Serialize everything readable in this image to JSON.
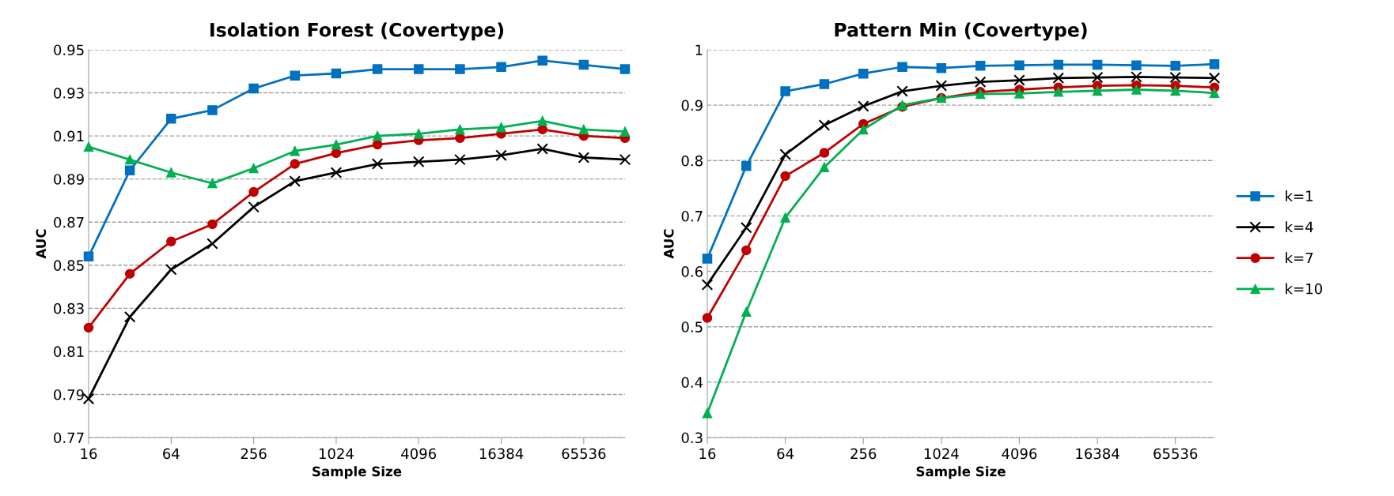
{
  "chart_data": [
    {
      "type": "line",
      "title": "Isolation Forest (Covertype)",
      "xlabel": "Sample Size",
      "ylabel": "AUC",
      "categories": [
        "16",
        null,
        "64",
        null,
        "256",
        null,
        "1024",
        null,
        "4096",
        null,
        "16384",
        null,
        "65536",
        null
      ],
      "ylim": [
        0.77,
        0.95
      ],
      "yticks": [
        0.77,
        0.79,
        0.81,
        0.83,
        0.85,
        0.87,
        0.89,
        0.91,
        0.93,
        0.95
      ],
      "grid": "y",
      "series": [
        {
          "color": "#0070c0",
          "marker": "square",
          "values": [
            0.854,
            0.894,
            0.918,
            0.922,
            0.932,
            0.938,
            0.939,
            0.941,
            0.941,
            0.941,
            0.942,
            0.945,
            0.943,
            0.941
          ]
        },
        {
          "color": "#000000",
          "marker": "cross",
          "values": [
            0.788,
            0.826,
            0.848,
            0.86,
            0.877,
            0.889,
            0.893,
            0.897,
            0.898,
            0.899,
            0.901,
            0.904,
            0.9,
            0.899
          ]
        },
        {
          "color": "#c00000",
          "marker": "circle",
          "values": [
            0.821,
            0.846,
            0.861,
            0.869,
            0.884,
            0.897,
            0.902,
            0.906,
            0.908,
            0.909,
            0.911,
            0.913,
            0.91,
            0.909
          ]
        },
        {
          "color": "#00b050",
          "marker": "triangle",
          "values": [
            0.905,
            0.899,
            0.893,
            0.888,
            0.895,
            0.903,
            0.906,
            0.91,
            0.911,
            0.913,
            0.914,
            0.917,
            0.913,
            0.912
          ]
        }
      ]
    },
    {
      "type": "line",
      "title": "Pattern Min (Covertype)",
      "xlabel": "Sample Size",
      "ylabel": "AUC",
      "categories": [
        "16",
        null,
        "64",
        null,
        "256",
        null,
        "1024",
        null,
        "4096",
        null,
        "16384",
        null,
        "65536",
        null
      ],
      "ylim": [
        0.3,
        1
      ],
      "yticks": [
        0.3,
        0.4,
        0.5,
        0.6,
        0.7,
        0.8,
        0.9,
        {
          "value": 1,
          "label": "1"
        }
      ],
      "grid": "y",
      "legend": "right",
      "series": [
        {
          "name": "k=1",
          "color": "#0070c0",
          "marker": "square",
          "values": [
            0.623,
            0.79,
            0.925,
            0.938,
            0.957,
            0.969,
            0.967,
            0.971,
            0.972,
            0.973,
            0.973,
            0.972,
            0.971,
            0.974
          ]
        },
        {
          "name": "k=4",
          "color": "#000000",
          "marker": "cross",
          "values": [
            0.576,
            0.679,
            0.811,
            0.864,
            0.898,
            0.925,
            0.935,
            0.942,
            0.945,
            0.949,
            0.95,
            0.951,
            0.95,
            0.949
          ]
        },
        {
          "name": "k=7",
          "color": "#c00000",
          "marker": "circle",
          "values": [
            0.516,
            0.638,
            0.772,
            0.814,
            0.866,
            0.897,
            0.913,
            0.924,
            0.928,
            0.932,
            0.935,
            0.936,
            0.935,
            0.932
          ]
        },
        {
          "name": "k=10",
          "color": "#00b050",
          "marker": "triangle",
          "values": [
            0.344,
            0.527,
            0.697,
            0.788,
            0.856,
            0.9,
            0.913,
            0.92,
            0.921,
            0.924,
            0.926,
            0.928,
            0.926,
            0.922
          ]
        }
      ]
    }
  ]
}
